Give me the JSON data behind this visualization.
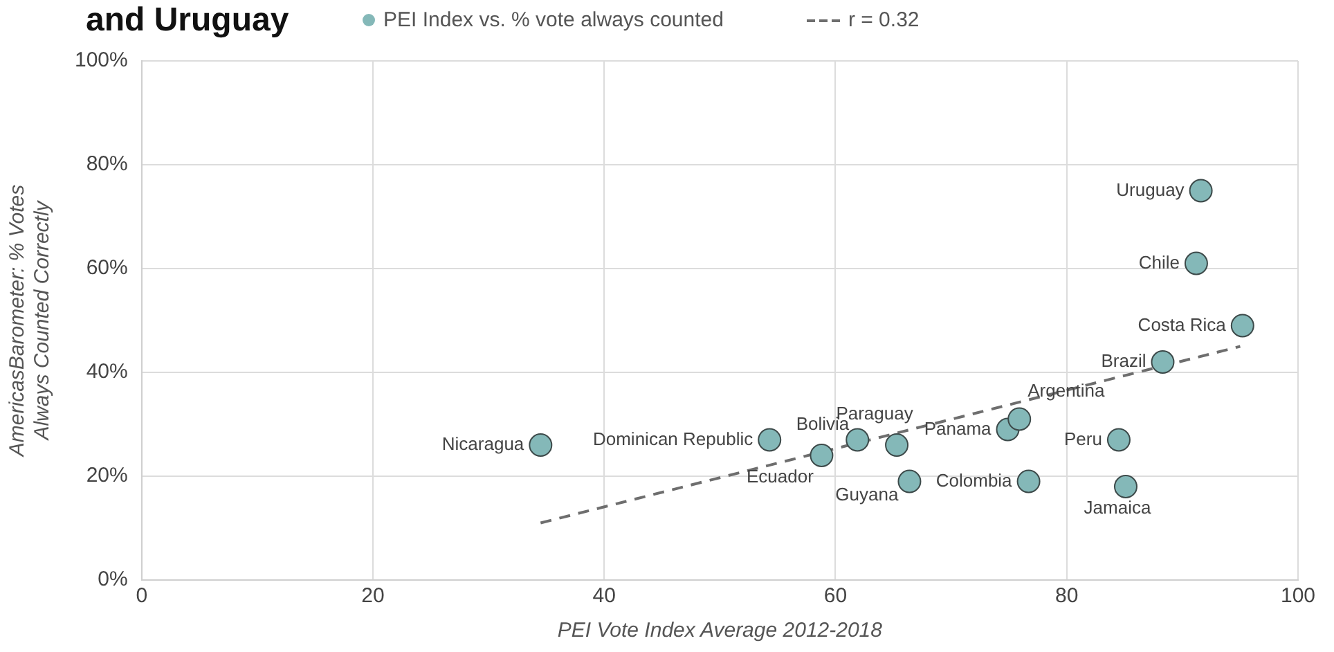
{
  "chart_data": {
    "type": "scatter",
    "title": "and Uruguay",
    "xlabel": "PEI Vote Index Average 2012-2018",
    "ylabel": "AmericasBarometer: % Votes Always Counted Correctly",
    "series": [
      {
        "name": "PEI Index vs. % vote always counted",
        "marker": "circle",
        "color": "#84b8b8",
        "x": [
          34.5,
          54.3,
          58.8,
          61.9,
          65.3,
          66.4,
          74.9,
          75.9,
          76.7,
          84.5,
          85.1,
          88.3,
          95.2,
          91.2,
          91.6
        ],
        "values": [
          26,
          27,
          24,
          27,
          26,
          19,
          29,
          31,
          19,
          27,
          18,
          42,
          49,
          61,
          75
        ]
      },
      {
        "name": "r = 0.32",
        "type": "line",
        "color": "#6e6e6e",
        "line_style": "dashed",
        "x": [
          34.5,
          95
        ],
        "values": [
          11,
          45
        ]
      }
    ],
    "annotations": [
      {
        "text": "Nicaragua",
        "x": 34.5,
        "y": 26
      },
      {
        "text": "Dominican Republic",
        "x": 54.3,
        "y": 27
      },
      {
        "text": "Ecuador",
        "x": 58.8,
        "y": 24
      },
      {
        "text": "Bolivia",
        "x": 61.9,
        "y": 27
      },
      {
        "text": "Paraguay",
        "x": 65.3,
        "y": 26
      },
      {
        "text": "Guyana",
        "x": 66.4,
        "y": 19
      },
      {
        "text": "Panama",
        "x": 74.9,
        "y": 29
      },
      {
        "text": "Argentina",
        "x": 75.9,
        "y": 31
      },
      {
        "text": "Colombia",
        "x": 76.7,
        "y": 19
      },
      {
        "text": "Peru",
        "x": 84.5,
        "y": 27
      },
      {
        "text": "Jamaica",
        "x": 85.1,
        "y": 18
      },
      {
        "text": "Brazil",
        "x": 88.3,
        "y": 42
      },
      {
        "text": "Costa Rica",
        "x": 95.2,
        "y": 49
      },
      {
        "text": "Chile",
        "x": 91.2,
        "y": 61
      },
      {
        "text": "Uruguay",
        "x": 91.6,
        "y": 75
      }
    ],
    "xlim": [
      0,
      100
    ],
    "xticks": [
      0,
      20,
      40,
      60,
      80,
      100
    ],
    "ylim": [
      0,
      100
    ],
    "yticks": [
      {
        "value": 0,
        "label": "0%"
      },
      {
        "value": 20,
        "label": "20%"
      },
      {
        "value": 40,
        "label": "40%"
      },
      {
        "value": 60,
        "label": "60%"
      },
      {
        "value": 80,
        "label": "80%"
      },
      {
        "value": 100,
        "label": "100%"
      }
    ],
    "grid": true,
    "legend": "top"
  }
}
